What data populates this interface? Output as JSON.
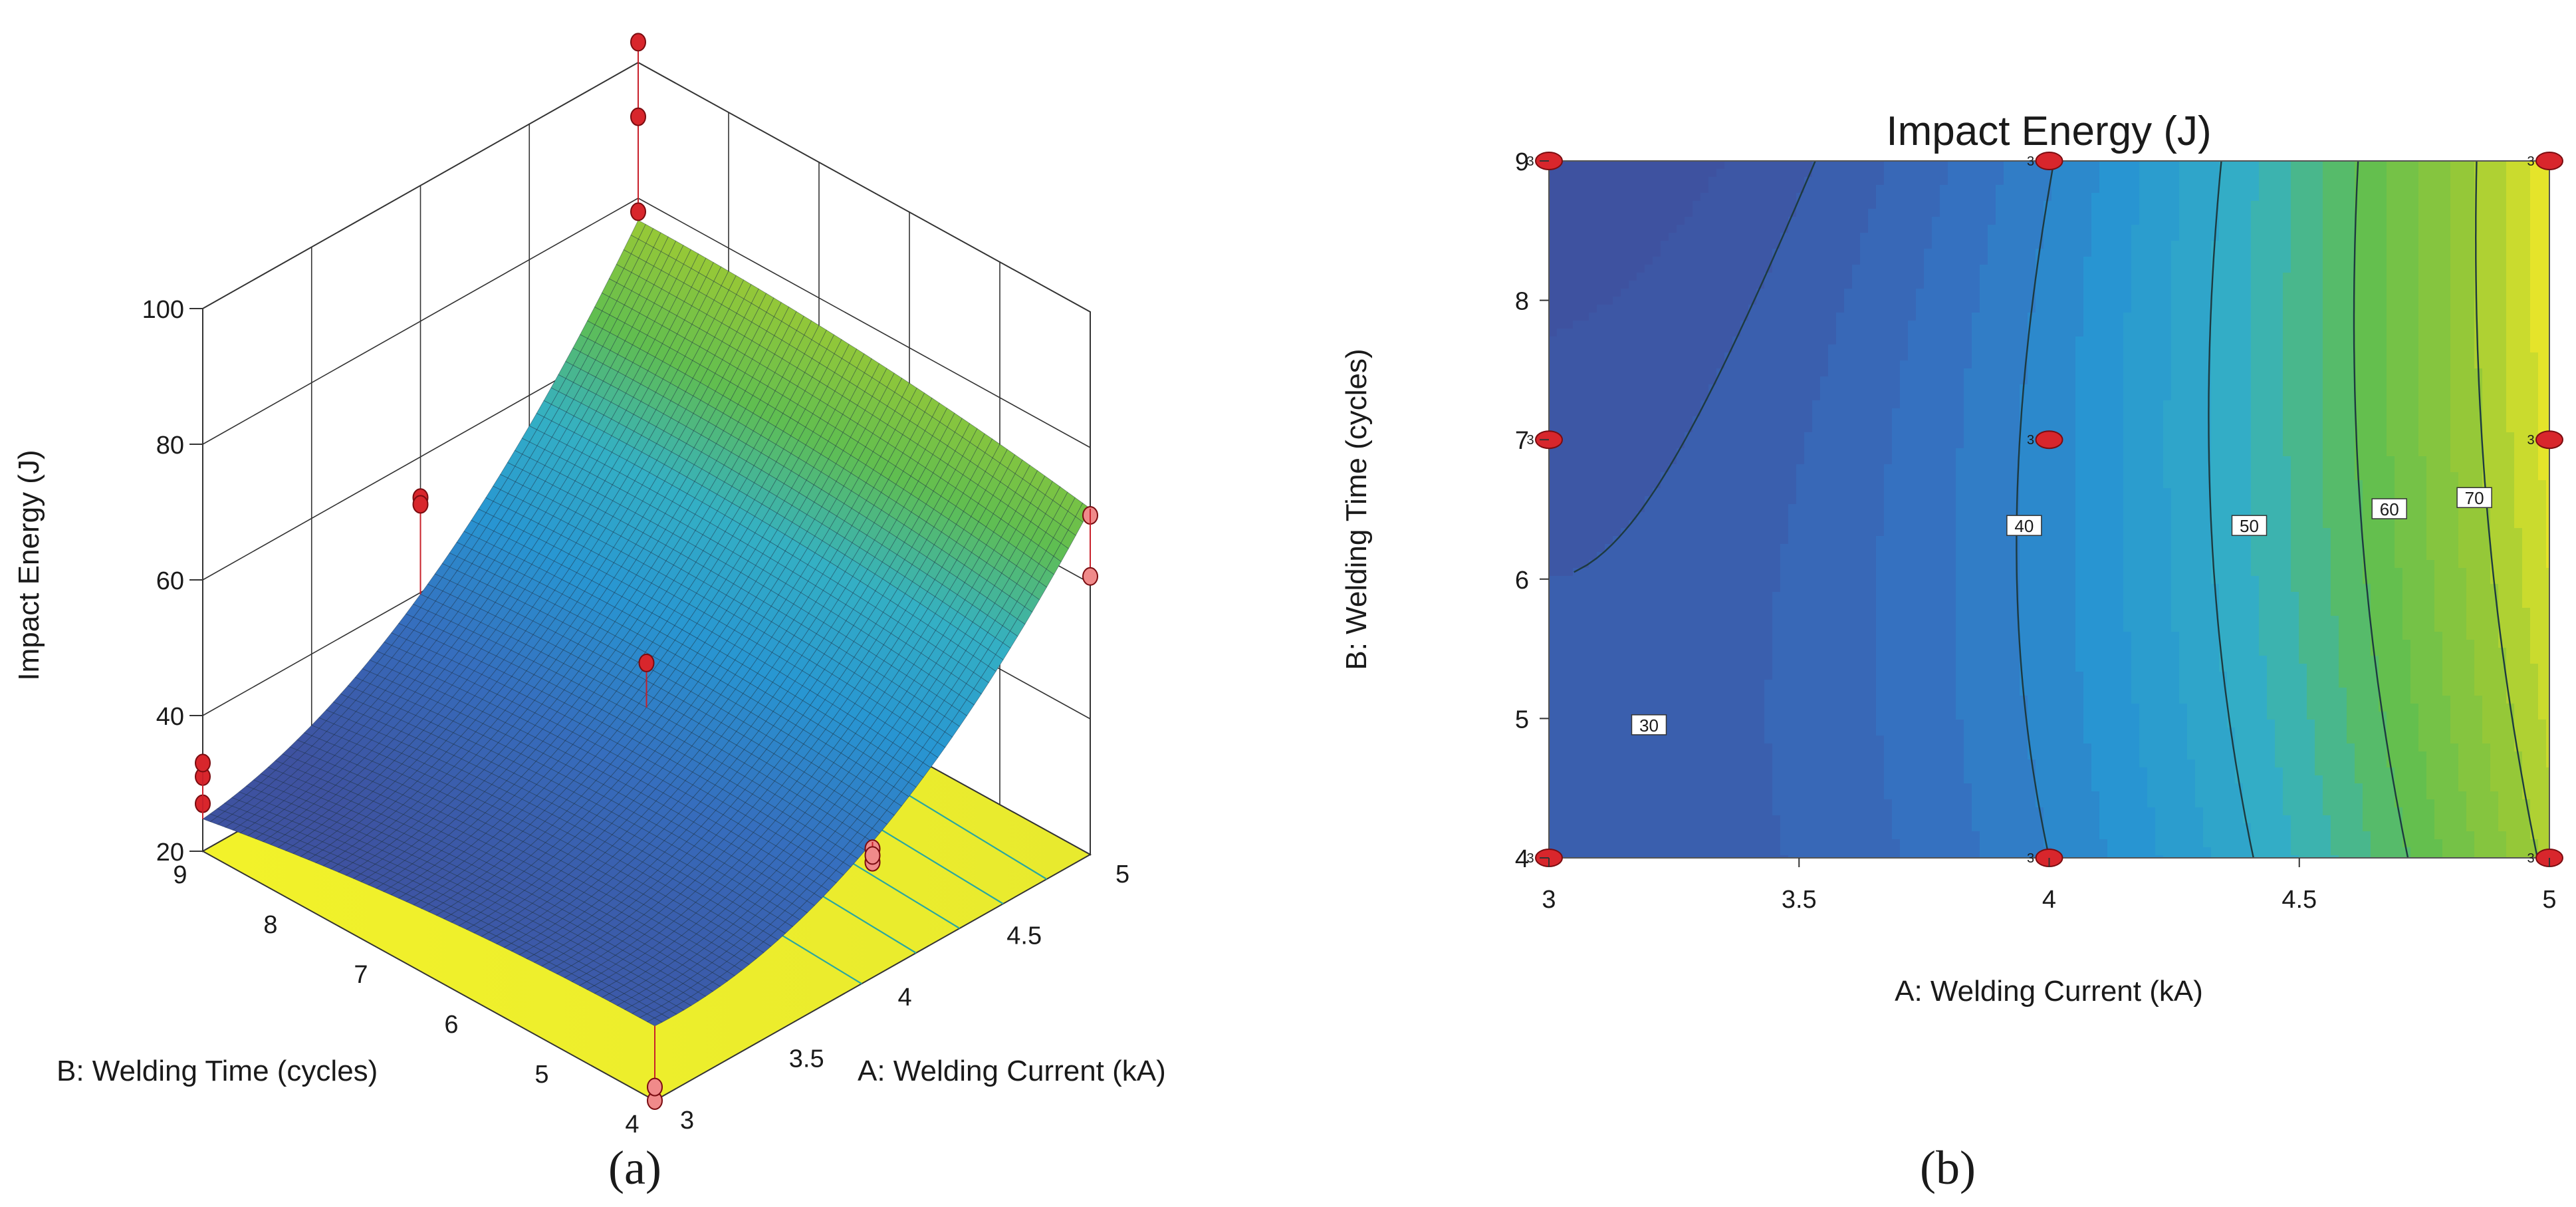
{
  "panel_a": {
    "label": "(a)",
    "chart_data": {
      "type": "surface",
      "title": "",
      "xlabel": "A: Welding Current (kA)",
      "ylabel": "B: Welding Time (cycles)",
      "zlabel": "Impact Energy (J)",
      "x_ticks": [
        "3",
        "3.5",
        "4",
        "4.5",
        "5"
      ],
      "y_ticks": [
        "4",
        "5",
        "6",
        "7",
        "8",
        "9"
      ],
      "z_ticks": [
        "20",
        "40",
        "60",
        "80",
        "100"
      ],
      "xlim": [
        3,
        5
      ],
      "ylim": [
        4,
        9
      ],
      "zlim": [
        20,
        100
      ],
      "design_points": [
        {
          "current": 3,
          "time": 4,
          "energy": 20
        },
        {
          "current": 3,
          "time": 4,
          "energy": 22
        },
        {
          "current": 3,
          "time": 9,
          "energy": 31
        },
        {
          "current": 3,
          "time": 9,
          "energy": 27
        },
        {
          "current": 3,
          "time": 9,
          "energy": 33
        },
        {
          "current": 4,
          "time": 4,
          "energy": 37
        },
        {
          "current": 4,
          "time": 4,
          "energy": 39
        },
        {
          "current": 4,
          "time": 4,
          "energy": 38
        },
        {
          "current": 4,
          "time": 9,
          "energy": 54
        },
        {
          "current": 4,
          "time": 9,
          "energy": 53
        },
        {
          "current": 4,
          "time": 6.5,
          "energy": 48
        },
        {
          "current": 5,
          "time": 4,
          "energy": 70
        },
        {
          "current": 5,
          "time": 4,
          "energy": 61
        },
        {
          "current": 5,
          "time": 9,
          "energy": 103
        },
        {
          "current": 5,
          "time": 9,
          "energy": 92
        },
        {
          "current": 5,
          "time": 9,
          "energy": 78
        }
      ]
    }
  },
  "panel_b": {
    "label": "(b)",
    "chart_data": {
      "type": "contour",
      "title": "Impact Energy (J)",
      "xlabel": "A: Welding Current (kA)",
      "ylabel": "B: Welding Time (cycles)",
      "x_ticks": [
        "3",
        "3.5",
        "4",
        "4.5",
        "5"
      ],
      "y_ticks": [
        "4",
        "5",
        "6",
        "7",
        "8",
        "9"
      ],
      "xlim": [
        3,
        5
      ],
      "ylim": [
        4,
        9
      ],
      "contour_levels": [
        {
          "label": "30",
          "value": 30,
          "at": [
            3.2,
            4.95
          ]
        },
        {
          "label": "40",
          "value": 40,
          "at": [
            3.95,
            6.38
          ]
        },
        {
          "label": "50",
          "value": 50,
          "at": [
            4.4,
            6.38
          ]
        },
        {
          "label": "60",
          "value": 60,
          "at": [
            4.68,
            6.5
          ]
        },
        {
          "label": "70",
          "value": 70,
          "at": [
            4.85,
            6.58
          ]
        }
      ],
      "design_points": [
        {
          "current": 3,
          "time": 9,
          "count": "3"
        },
        {
          "current": 4,
          "time": 9,
          "count": "3"
        },
        {
          "current": 5,
          "time": 9,
          "count": "3"
        },
        {
          "current": 3,
          "time": 7,
          "count": "3"
        },
        {
          "current": 4,
          "time": 7,
          "count": "3"
        },
        {
          "current": 5,
          "time": 7,
          "count": "3"
        },
        {
          "current": 3,
          "time": 4,
          "count": "3"
        },
        {
          "current": 4,
          "time": 4,
          "count": "3"
        },
        {
          "current": 5,
          "time": 4,
          "count": "3"
        }
      ]
    }
  }
}
